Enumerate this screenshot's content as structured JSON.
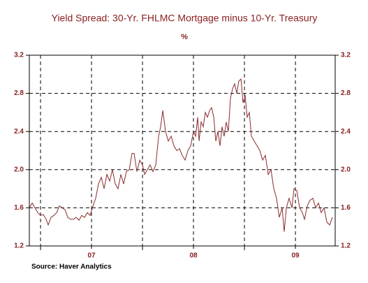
{
  "chart_data": {
    "type": "line",
    "title": "Yield Spread: 30-Yr. FHLMC Mortgage minus 10-Yr. Treasury",
    "subtitle": "%",
    "source": "Source: Haver Analytics",
    "xlim": [
      2006.89,
      2009.89
    ],
    "xticks": [
      {
        "value": 2007.5,
        "label": "07"
      },
      {
        "value": 2008.5,
        "label": "08"
      },
      {
        "value": 2009.5,
        "label": "09"
      }
    ],
    "xminorticks": [
      2007,
      2008,
      2009
    ],
    "ylim": [
      1.2,
      3.2
    ],
    "yticks": [
      1.2,
      1.6,
      {
        "value": 2,
        "label": "2.0"
      },
      2.4,
      2.8,
      3.2
    ],
    "grid": true,
    "series": [
      {
        "color": "#8b2a2a",
        "x": [
          2006.89,
          2006.918,
          2006.945,
          2006.973,
          2007,
          2007.027,
          2007.055,
          2007.075,
          2007.103,
          2007.13,
          2007.158,
          2007.185,
          2007.212,
          2007.24,
          2007.267,
          2007.295,
          2007.322,
          2007.349,
          2007.377,
          2007.404,
          2007.432,
          2007.459,
          2007.486,
          2007.514,
          2007.541,
          2007.568,
          2007.596,
          2007.623,
          2007.651,
          2007.678,
          2007.705,
          2007.733,
          2007.76,
          2007.788,
          2007.815,
          2007.842,
          2007.87,
          2007.897,
          2007.918,
          2007.945,
          2007.973,
          2008,
          2008.021,
          2008.048,
          2008.075,
          2008.103,
          2008.13,
          2008.158,
          2008.178,
          2008.199,
          2008.226,
          2008.253,
          2008.281,
          2008.308,
          2008.336,
          2008.363,
          2008.39,
          2008.418,
          2008.445,
          2008.473,
          2008.5,
          2008.521,
          2008.541,
          2008.555,
          2008.575,
          2008.596,
          2008.616,
          2008.637,
          2008.658,
          2008.678,
          2008.699,
          2008.719,
          2008.74,
          2008.76,
          2008.781,
          2008.801,
          2008.822,
          2008.842,
          2008.863,
          2008.884,
          2008.904,
          2008.925,
          2008.945,
          2008.966,
          2008.986,
          2009.007,
          2009.027,
          2009.048,
          2009.068,
          2009.096,
          2009.123,
          2009.151,
          2009.178,
          2009.205,
          2009.233,
          2009.26,
          2009.288,
          2009.315,
          2009.342,
          2009.37,
          2009.39,
          2009.411,
          2009.438,
          2009.466,
          2009.486,
          2009.514,
          2009.541,
          2009.568,
          2009.589,
          2009.616,
          2009.644,
          2009.671,
          2009.699,
          2009.726,
          2009.753,
          2009.781,
          2009.808,
          2009.836,
          2009.863
        ],
        "values": [
          1.6,
          1.65,
          1.6,
          1.55,
          1.52,
          1.53,
          1.48,
          1.42,
          1.5,
          1.52,
          1.55,
          1.62,
          1.6,
          1.58,
          1.5,
          1.48,
          1.48,
          1.5,
          1.47,
          1.52,
          1.5,
          1.55,
          1.52,
          1.62,
          1.7,
          1.85,
          1.92,
          1.8,
          1.95,
          1.88,
          2.0,
          1.85,
          1.8,
          1.95,
          1.85,
          1.98,
          2.0,
          2.17,
          2.17,
          1.98,
          2.1,
          2.05,
          1.95,
          2.0,
          2.05,
          1.98,
          2.05,
          2.35,
          2.45,
          2.62,
          2.4,
          2.3,
          2.35,
          2.25,
          2.2,
          2.22,
          2.15,
          2.1,
          2.2,
          2.25,
          2.4,
          2.35,
          2.55,
          2.3,
          2.5,
          2.45,
          2.6,
          2.55,
          2.62,
          2.65,
          2.55,
          2.3,
          2.4,
          2.25,
          2.45,
          2.35,
          2.5,
          2.4,
          2.75,
          2.85,
          2.9,
          2.8,
          2.93,
          2.95,
          2.7,
          2.78,
          2.55,
          2.6,
          2.35,
          2.3,
          2.25,
          2.2,
          2.1,
          2.15,
          1.95,
          2.0,
          1.8,
          1.7,
          1.5,
          1.6,
          1.35,
          1.6,
          1.7,
          1.6,
          1.8,
          1.78,
          1.6,
          1.55,
          1.48,
          1.62,
          1.68,
          1.7,
          1.6,
          1.65,
          1.55,
          1.6,
          1.45,
          1.42,
          1.5
        ]
      }
    ]
  }
}
